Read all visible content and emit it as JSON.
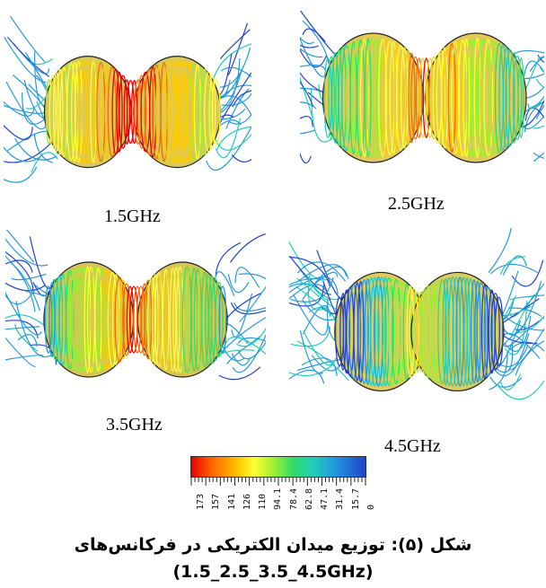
{
  "panels": [
    {
      "id": "p1",
      "label": "1.5GHz"
    },
    {
      "id": "p2",
      "label": "2.5GHz"
    },
    {
      "id": "p3",
      "label": "3.5GHz"
    },
    {
      "id": "p4",
      "label": "4.5GHz"
    }
  ],
  "colorbar": {
    "tick_labels": [
      "173",
      "157",
      "141",
      "126",
      "110",
      "94.1",
      "78.4",
      "62.8",
      "47.1",
      "31.4",
      "15.7",
      "0"
    ],
    "colors": [
      "#e60000",
      "#ff6600",
      "#ffcc00",
      "#ffff33",
      "#99ee33",
      "#33dd66",
      "#22ccbb",
      "#2299dd",
      "#2244cc"
    ]
  },
  "caption": {
    "line1": "شکل (۵): توزیع میدان الکتریکی در فرکانس‌های",
    "line2": "(1.5_2.5_3.5_4.5GHz)"
  }
}
